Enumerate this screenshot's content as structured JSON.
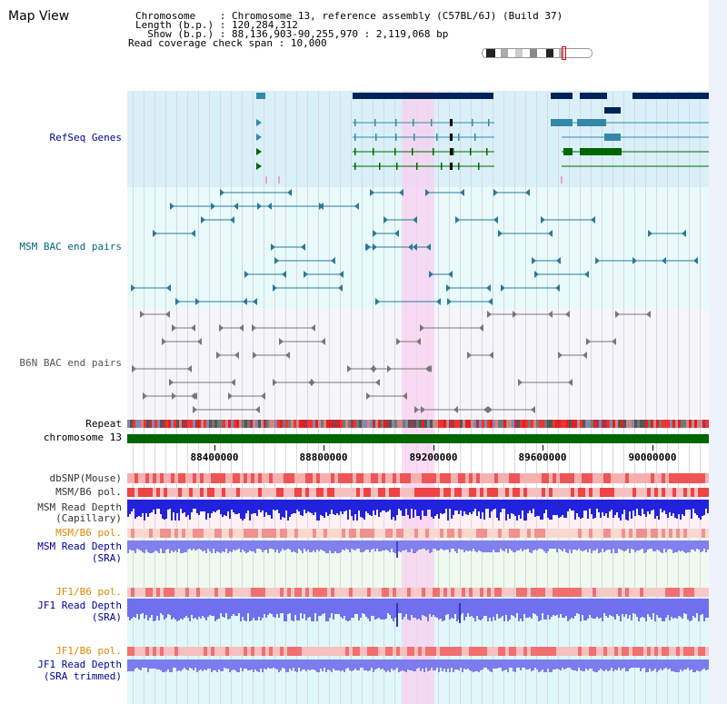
{
  "title": "Map View",
  "info": {
    "chromosome_key": "Chromosome",
    "chromosome_val": "Chromosome 13, reference assembly (C57BL/6J) (Build 37)",
    "length_key": "Length (b.p.)",
    "length_val": "120,284,312",
    "show_key": "Show (b.p.)",
    "show_val": "88,136,903-90,255,970 : 2,119,068 bp",
    "coverage_key": "Read coverage check span",
    "coverage_val": "10,000"
  },
  "tracks": {
    "refseq": "RefSeq Genes",
    "msm_bac": "MSM BAC end pairs",
    "b6n_bac": "B6N BAC end pairs",
    "repeat": "Repeat",
    "chrom": "chromosome 13",
    "dbsnp": "dbSNP(Mouse)",
    "msm_b6_pol_1": "MSM/B6 pol.",
    "msm_depth_cap_1": "MSM Read Depth",
    "msm_depth_cap_2": "(Capillary)",
    "msm_b6_pol_2": "MSM/B6 pol.",
    "msm_depth_sra_1": "MSM Read Depth",
    "msm_depth_sra_2": "(SRA)",
    "jf1_pol_1": "JF1/B6 pol.",
    "jf1_depth_1": "JF1 Read Depth",
    "jf1_depth_2": "(SRA)",
    "jf1_pol_2": "JF1/B6 pol.",
    "jf1_trim_1": "JF1 Read Depth",
    "jf1_trim_2": "(SRA trimmed)"
  },
  "axis_ticks": [
    "88400000",
    "88800000",
    "89200000",
    "89600000",
    "90000000"
  ],
  "colors": {
    "refseq_bg": "#daf0f8",
    "bac_bg": "#e8fafa",
    "b6n_bg": "#f6f6fa",
    "highlight": "#f8d0f0",
    "chrom_green": "#006600",
    "navy": "#002255",
    "teal": "#3388aa",
    "label_blue": "#000099",
    "label_teal": "#006680",
    "label_orange": "#e08800"
  }
}
